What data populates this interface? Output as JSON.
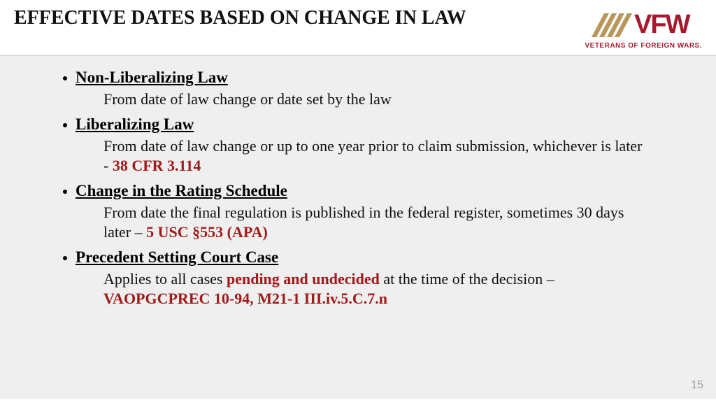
{
  "colors": {
    "brand_red": "#a6192e",
    "brand_gold": "#b8985a",
    "title_text": "#111111",
    "body_bg": "#efefef",
    "cite_red": "#a31919",
    "pagenum": "#9a9a9a",
    "divider": "#cccccc"
  },
  "typography": {
    "title_pt": 28,
    "heading_pt": 23,
    "body_pt": 22,
    "logo_main_pt": 38,
    "logo_sub_pt": 10,
    "pagenum_pt": 16
  },
  "header": {
    "title": "EFFECTIVE DATES BASED ON CHANGE IN LAW",
    "logo_main": "VFW",
    "logo_sub": "VETERANS OF FOREIGN WARS."
  },
  "items": [
    {
      "heading": "Non-Liberalizing Law",
      "sub_pre": "From date of law change or date set by the law",
      "sub_cite": "",
      "sub_post": ""
    },
    {
      "heading": "Liberalizing Law",
      "sub_pre": "From date of law change or up to one year prior to claim submission, whichever is later - ",
      "sub_cite": "38 CFR 3.114",
      "sub_post": ""
    },
    {
      "heading": "Change in the Rating Schedule",
      "sub_pre": "From date the final regulation is published in the federal register, sometimes 30 days later – ",
      "sub_cite": "5 USC §553 (APA)",
      "sub_post": ""
    },
    {
      "heading": "Precedent Setting Court Case",
      "sub_pre": "Applies to all cases ",
      "sub_cite": "pending and undecided",
      "sub_post": " at the time of the decision – ",
      "sub_cite2": "VAOPGCPREC 10-94, M21-1 III.iv.5.C.7.n"
    }
  ],
  "page_number": "15"
}
